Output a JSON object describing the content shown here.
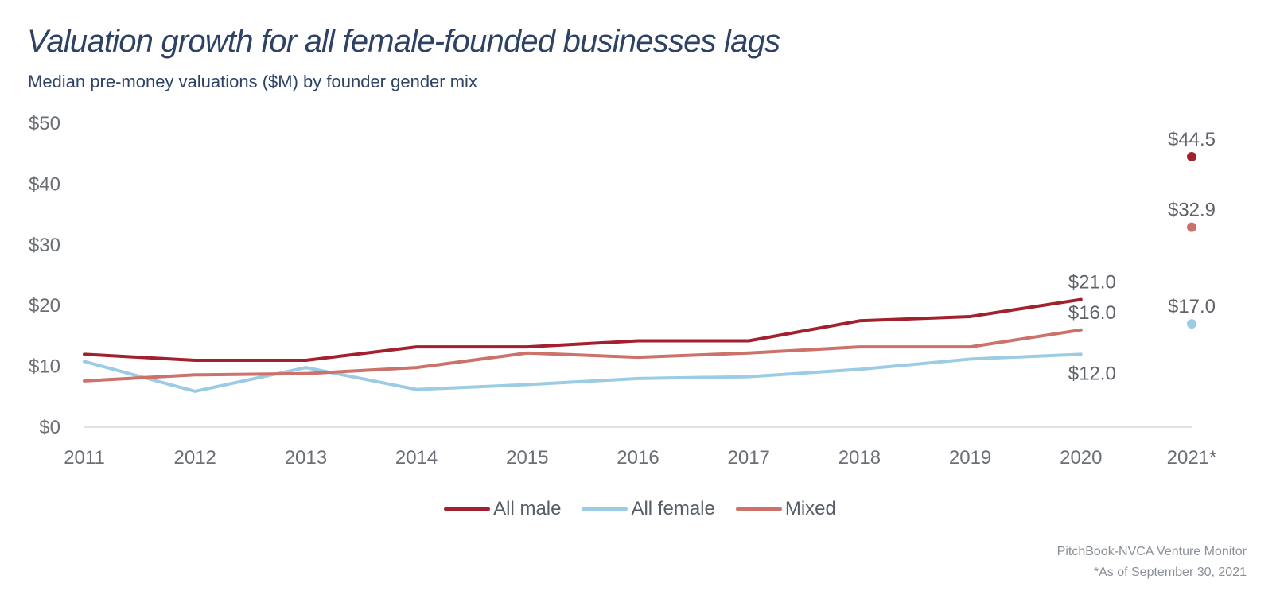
{
  "header": {
    "title": "Valuation growth for all female-founded businesses lags",
    "subtitle": "Median pre-money valuations ($M) by founder gender mix"
  },
  "footer": {
    "source": "PitchBook-NVCA Venture Monitor",
    "note": "*As of September 30, 2021"
  },
  "colors": {
    "all_male": "#a3202e",
    "all_female": "#9ccbe4",
    "mixed": "#cc726b",
    "axis_text": "#6b6f75",
    "label_text": "#5f636a",
    "baseline": "#d7d7d7"
  },
  "chart_data": {
    "type": "line",
    "x": [
      "2011",
      "2012",
      "2013",
      "2014",
      "2015",
      "2016",
      "2017",
      "2018",
      "2019",
      "2020",
      "2021*"
    ],
    "ylim": [
      0,
      50
    ],
    "yticks": [
      "$0",
      "$10",
      "$20",
      "$30",
      "$40",
      "$50"
    ],
    "ytick_values": [
      0,
      10,
      20,
      30,
      40,
      50
    ],
    "grid": false,
    "legend_position": "bottom-center",
    "series": [
      {
        "name": "All male",
        "color_key": "all_male",
        "values": [
          12.0,
          11.0,
          11.0,
          13.2,
          13.2,
          14.2,
          14.2,
          17.5,
          18.2,
          21.0,
          44.5
        ],
        "labels": {
          "9": "$21.0",
          "10": "$44.5"
        }
      },
      {
        "name": "All female",
        "color_key": "all_female",
        "values": [
          10.8,
          5.9,
          9.8,
          6.2,
          7.0,
          8.0,
          8.3,
          9.5,
          11.2,
          12.0,
          17.0
        ],
        "labels": {
          "9": "$12.0",
          "10": "$17.0"
        }
      },
      {
        "name": "Mixed",
        "color_key": "mixed",
        "values": [
          7.6,
          8.6,
          8.8,
          9.8,
          12.2,
          11.5,
          12.2,
          13.2,
          13.2,
          16.0,
          32.9
        ],
        "labels": {
          "9": "$16.0",
          "10": "$32.9"
        }
      }
    ]
  }
}
